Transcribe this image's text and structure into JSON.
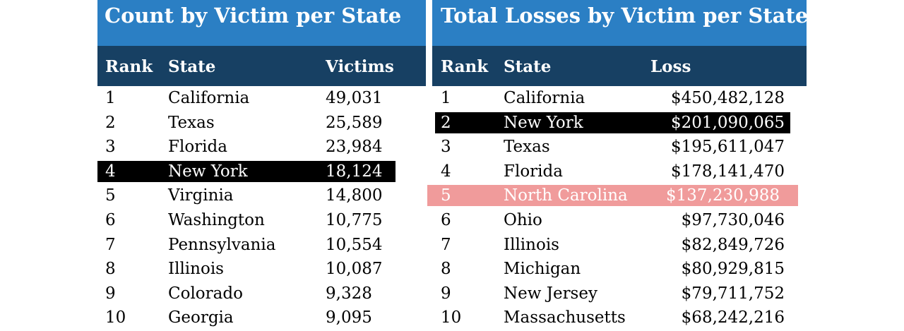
{
  "count_table": {
    "title": "Count by Victim per State",
    "headers": {
      "rank": "Rank",
      "state": "State",
      "value": "Victims"
    },
    "rows": [
      {
        "rank": "1",
        "state": "California",
        "value": "49,031",
        "highlight": ""
      },
      {
        "rank": "2",
        "state": "Texas",
        "value": "25,589",
        "highlight": ""
      },
      {
        "rank": "3",
        "state": "Florida",
        "value": "23,984",
        "highlight": ""
      },
      {
        "rank": "4",
        "state": "New York",
        "value": "18,124",
        "highlight": "black"
      },
      {
        "rank": "5",
        "state": "Virginia",
        "value": "14,800",
        "highlight": ""
      },
      {
        "rank": "6",
        "state": "Washington",
        "value": "10,775",
        "highlight": ""
      },
      {
        "rank": "7",
        "state": "Pennsylvania",
        "value": "10,554",
        "highlight": ""
      },
      {
        "rank": "8",
        "state": "Illinois",
        "value": "10,087",
        "highlight": ""
      },
      {
        "rank": "9",
        "state": "Colorado",
        "value": "9,328",
        "highlight": ""
      },
      {
        "rank": "10",
        "state": "Georgia",
        "value": "9,095",
        "highlight": ""
      }
    ]
  },
  "loss_table": {
    "title": "Total Losses by Victim per State",
    "headers": {
      "rank": "Rank",
      "state": "State",
      "value": "Loss"
    },
    "rows": [
      {
        "rank": "1",
        "state": "California",
        "value": "$450,482,128",
        "highlight": ""
      },
      {
        "rank": "2",
        "state": "New York",
        "value": "$201,090,065",
        "highlight": "black"
      },
      {
        "rank": "3",
        "state": "Texas",
        "value": "$195,611,047",
        "highlight": ""
      },
      {
        "rank": "4",
        "state": "Florida",
        "value": "$178,141,470",
        "highlight": ""
      },
      {
        "rank": "5",
        "state": "North Carolina",
        "value": "$137,230,988",
        "highlight": "pink"
      },
      {
        "rank": "6",
        "state": "Ohio",
        "value": "$97,730,046",
        "highlight": ""
      },
      {
        "rank": "7",
        "state": "Illinois",
        "value": "$82,849,726",
        "highlight": ""
      },
      {
        "rank": "8",
        "state": "Michigan",
        "value": "$80,929,815",
        "highlight": ""
      },
      {
        "rank": "9",
        "state": "New Jersey",
        "value": "$79,711,752",
        "highlight": ""
      },
      {
        "rank": "10",
        "state": "Massachusetts",
        "value": "$68,242,216",
        "highlight": ""
      }
    ]
  },
  "colors": {
    "title_bar": "#2b7fc4",
    "header_bar": "#174063",
    "highlight_black": "#000000",
    "highlight_pink": "#f09b9b"
  }
}
